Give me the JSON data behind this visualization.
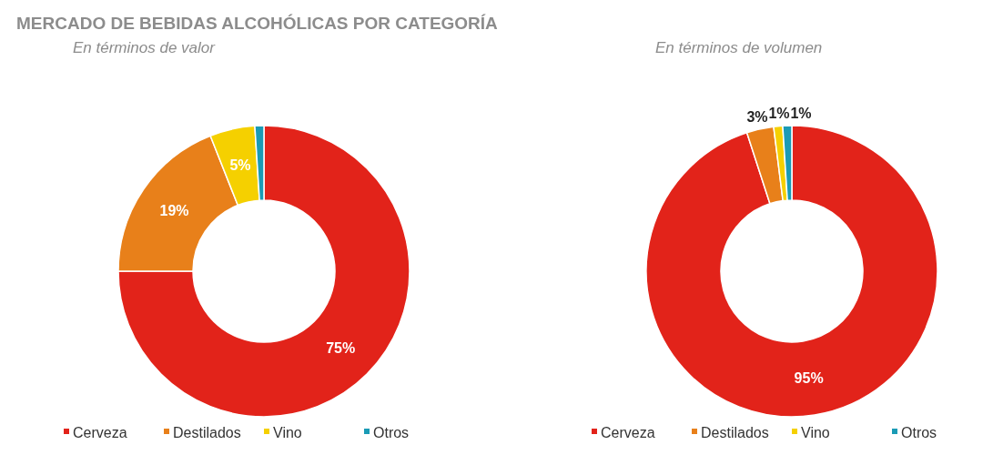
{
  "chart_data": [
    {
      "type": "donut",
      "title": "MERCADO DE BEBIDAS ALCOHÓLICAS POR CATEGORÍA",
      "subtitle": "En términos de valor",
      "categories": [
        "Cerveza",
        "Destilados",
        "Vino",
        "Otros"
      ],
      "values": [
        75,
        19,
        5,
        1
      ],
      "colors": [
        "#e2231a",
        "#e8801a",
        "#f5d000",
        "#1a9bb5"
      ],
      "value_labels": [
        "75%",
        "19%",
        "5%",
        null
      ],
      "legend": "bottom"
    },
    {
      "type": "donut",
      "subtitle": "En términos de volumen",
      "categories": [
        "Cerveza",
        "Destilados",
        "Vino",
        "Otros"
      ],
      "values": [
        95,
        3,
        1,
        1
      ],
      "colors": [
        "#e2231a",
        "#e8801a",
        "#f5d000",
        "#1a9bb5"
      ],
      "value_labels": [
        "95%",
        "3%",
        "1%",
        "1%"
      ],
      "legend": "bottom"
    }
  ]
}
